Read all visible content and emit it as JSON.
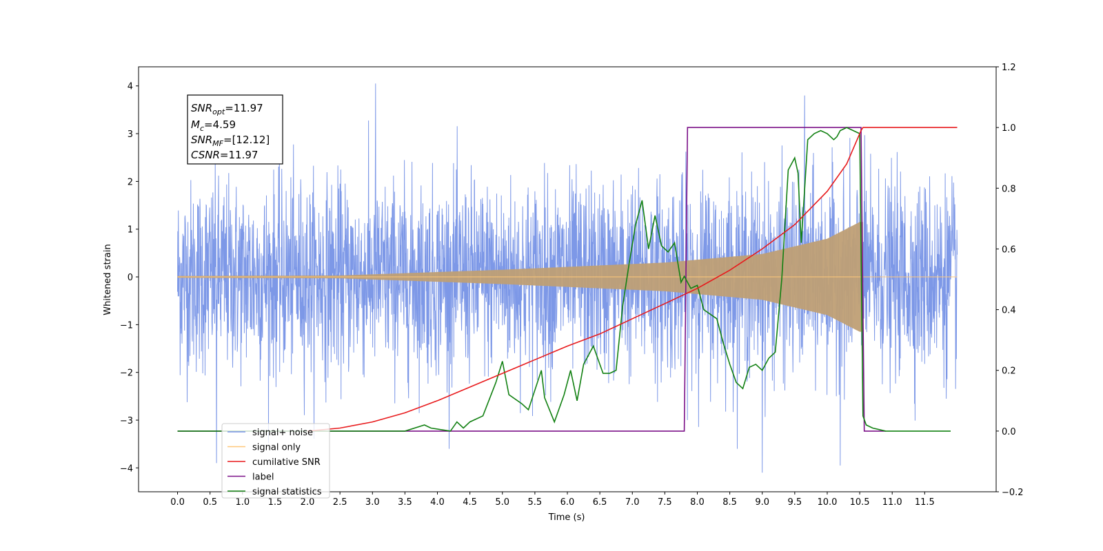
{
  "chart_data": {
    "type": "line",
    "xlabel": "Time (s)",
    "ylabel": "Whitened strain",
    "xlim": [
      -0.6,
      12.6
    ],
    "ylim": [
      -4.5,
      4.4
    ],
    "y2lim": [
      -0.2,
      1.2
    ],
    "grid": false,
    "legend_position": "lower-left",
    "x_ticks": [
      "0.0",
      "0.5",
      "1.0",
      "1.5",
      "2.0",
      "2.5",
      "3.0",
      "3.5",
      "4.0",
      "4.5",
      "5.0",
      "5.5",
      "6.0",
      "6.5",
      "7.0",
      "7.5",
      "8.0",
      "8.5",
      "9.0",
      "9.5",
      "10.0",
      "10.5",
      "11.0",
      "11.5"
    ],
    "y_ticks": [
      "−4",
      "−3",
      "−2",
      "−1",
      "0",
      "1",
      "2",
      "3",
      "4"
    ],
    "y2_ticks": [
      "−0.2",
      "0.0",
      "0.2",
      "0.4",
      "0.6",
      "0.8",
      "1.0",
      "1.2"
    ],
    "annotation": {
      "snr_opt": {
        "sym": "SNR",
        "sub": "opt",
        "val": "=11.97"
      },
      "mc": {
        "sym": "M",
        "sub": "c",
        "val": "=4.59"
      },
      "snr_mf": {
        "sym": "SNR",
        "sub": "MF",
        "val": "=[12.12]"
      },
      "csnr": {
        "sym": "CSNR",
        "val": "=11.97"
      }
    },
    "series": [
      {
        "name": "signal+ noise",
        "color": "#7692e6",
        "axis": "left",
        "x_range": [
          0.0,
          12.0
        ],
        "noise_sigma": 1.0,
        "peak_values": [
          [
            3.05,
            4.05
          ],
          [
            9.0,
            -4.1
          ],
          [
            10.2,
            -3.95
          ],
          [
            0.6,
            -3.9
          ],
          [
            9.65,
            3.8
          ]
        ]
      },
      {
        "name": "signal only",
        "color": "#ffc87a",
        "axis": "left",
        "x_range": [
          0.0,
          12.0
        ],
        "chirp_start": 2.5,
        "chirp_end": 10.55,
        "envelope": [
          [
            0.0,
            0.02
          ],
          [
            2.5,
            0.03
          ],
          [
            5.0,
            0.15
          ],
          [
            7.5,
            0.3
          ],
          [
            9.0,
            0.48
          ],
          [
            10.0,
            0.8
          ],
          [
            10.5,
            1.15
          ]
        ]
      },
      {
        "name": "cumilative SNR",
        "color": "#e8191b",
        "axis": "right",
        "x": [
          2.0,
          2.5,
          3.0,
          3.5,
          4.0,
          4.5,
          5.0,
          5.5,
          6.0,
          6.5,
          7.0,
          7.5,
          8.0,
          8.5,
          9.0,
          9.5,
          10.0,
          10.3,
          10.52,
          10.55,
          12.0
        ],
        "y": [
          0.0,
          0.01,
          0.03,
          0.06,
          0.1,
          0.145,
          0.19,
          0.235,
          0.28,
          0.32,
          0.37,
          0.42,
          0.47,
          0.53,
          0.6,
          0.68,
          0.79,
          0.88,
          0.99,
          1.0,
          1.0
        ]
      },
      {
        "name": "label",
        "color": "#7b1088",
        "axis": "right",
        "x": [
          0.0,
          7.8,
          7.85,
          10.52,
          10.57,
          10.9
        ],
        "y": [
          0.0,
          0.0,
          1.0,
          1.0,
          0.0,
          0.0
        ]
      },
      {
        "name": "signal statistics",
        "color": "#118011",
        "axis": "right",
        "x": [
          0.0,
          3.0,
          3.5,
          3.8,
          3.9,
          4.2,
          4.3,
          4.4,
          4.5,
          4.7,
          4.9,
          5.0,
          5.1,
          5.3,
          5.4,
          5.6,
          5.65,
          5.8,
          5.95,
          6.05,
          6.15,
          6.25,
          6.4,
          6.55,
          6.65,
          6.75,
          6.85,
          6.95,
          7.05,
          7.15,
          7.25,
          7.35,
          7.45,
          7.55,
          7.65,
          7.75,
          7.8,
          7.9,
          8.0,
          8.1,
          8.3,
          8.4,
          8.5,
          8.6,
          8.7,
          8.8,
          8.9,
          9.0,
          9.1,
          9.2,
          9.3,
          9.4,
          9.5,
          9.55,
          9.6,
          9.7,
          9.8,
          9.9,
          10.0,
          10.1,
          10.15,
          10.2,
          10.3,
          10.4,
          10.5,
          10.55,
          10.6,
          10.7,
          10.9,
          11.0,
          11.5,
          11.9
        ],
        "y": [
          0.0,
          0.0,
          0.0,
          0.02,
          0.01,
          0.0,
          0.03,
          0.01,
          0.03,
          0.05,
          0.16,
          0.23,
          0.12,
          0.09,
          0.07,
          0.2,
          0.11,
          0.03,
          0.12,
          0.2,
          0.1,
          0.22,
          0.28,
          0.19,
          0.19,
          0.2,
          0.41,
          0.55,
          0.68,
          0.76,
          0.6,
          0.71,
          0.61,
          0.59,
          0.62,
          0.49,
          0.51,
          0.47,
          0.48,
          0.4,
          0.37,
          0.29,
          0.22,
          0.16,
          0.14,
          0.21,
          0.22,
          0.2,
          0.24,
          0.26,
          0.5,
          0.86,
          0.9,
          0.85,
          0.62,
          0.96,
          0.98,
          0.99,
          0.98,
          0.96,
          0.97,
          0.99,
          1.0,
          0.99,
          0.98,
          0.05,
          0.02,
          0.01,
          0.0,
          0.0,
          0.0,
          0.0
        ]
      }
    ],
    "legend": [
      "signal+ noise",
      "signal only",
      "cumilative SNR",
      "label",
      "signal statistics"
    ]
  }
}
